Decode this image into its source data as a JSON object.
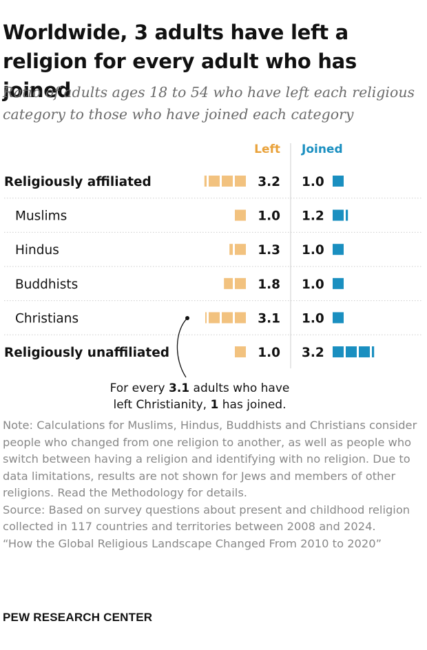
{
  "title": "Worldwide, 3 adults have left a religion for every adult who has joined",
  "subtitle": "Ratio of adults ages 18 to 54 who have left each religious category to those who have joined each category",
  "colors": {
    "left": "#f2c27f",
    "joined": "#1a8fc0",
    "left_header": "#e9a23b",
    "joined_header": "#1a8fc0",
    "divider": "#cccccc",
    "note": "#888888"
  },
  "chart_data": {
    "type": "bar",
    "series": [
      {
        "name": "Left",
        "values": [
          3.2,
          1.0,
          1.3,
          1.8,
          3.1,
          1.0
        ]
      },
      {
        "name": "Joined",
        "values": [
          1.0,
          1.2,
          1.0,
          1.0,
          1.0,
          3.2
        ]
      }
    ],
    "categories": [
      "Religiously affiliated",
      "Muslims",
      "Hindus",
      "Buddhists",
      "Christians",
      "Religiously unaffiliated"
    ],
    "category_bold": [
      true,
      false,
      false,
      false,
      false,
      true
    ],
    "value_labels_left": [
      "3.2",
      "1.0",
      "1.3",
      "1.8",
      "3.1",
      "1.0"
    ],
    "value_labels_joined": [
      "1.0",
      "1.2",
      "1.0",
      "1.0",
      "1.0",
      "3.2"
    ]
  },
  "callout": {
    "pre": "For every ",
    "bold1": "3.1",
    "mid": " adults who have",
    "line2_pre": "left Christianity, ",
    "bold2": "1",
    "line2_post": " has joined."
  },
  "note": {
    "note": "Note: Calculations for Muslims, Hindus, Buddhists and Christians consider people who changed from one religion to another, as well as people who switch between having a religion and identifying with no religion. Due to data limitations, results are not shown for Jews and members of other religions. Read the Methodology for details.",
    "source": "Source: Based on survey questions about present and childhood religion collected in 117 countries and territories between 2008 and 2024.",
    "report": "“How the Global Religious Landscape Changed From 2010 to 2020”"
  },
  "logo": "PEW RESEARCH CENTER"
}
